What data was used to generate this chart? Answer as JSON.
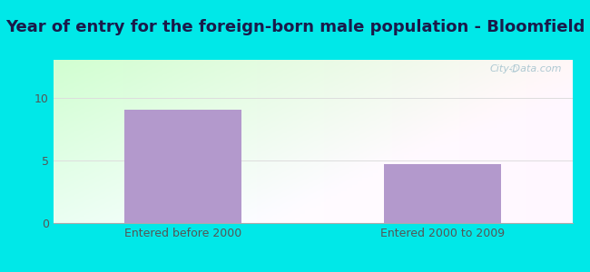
{
  "title": "Year of entry for the foreign-born male population - Bloomfield",
  "categories": [
    "Entered before 2000",
    "Entered 2000 to 2009"
  ],
  "values": [
    9.0,
    4.7
  ],
  "bar_color": "#b399cc",
  "outer_bg": "#00e8e8",
  "ylim": [
    0,
    13
  ],
  "yticks": [
    0,
    5,
    10
  ],
  "title_fontsize": 13,
  "tick_fontsize": 9,
  "watermark": "City-Data.com",
  "title_color": "#1a1a4a",
  "tick_color": "#555555",
  "grid_color": "#dddddd"
}
